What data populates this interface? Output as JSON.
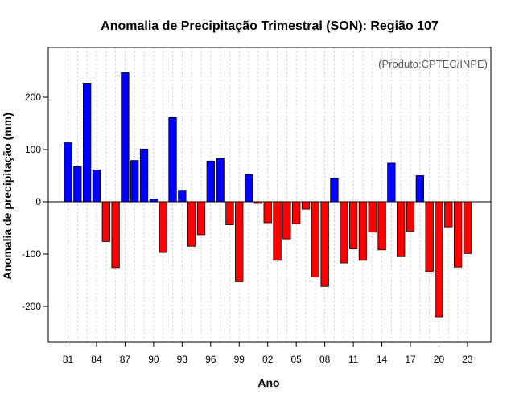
{
  "chart_data": {
    "type": "bar",
    "title": "Anomalia de Precipitação Trimestral (SON): Região 107",
    "xlabel": "Ano",
    "ylabel": "Anomalia de precipitação (mm)",
    "source_note": "(Produto:CPTEC/INPE)",
    "ylim": [
      -270,
      295
    ],
    "yticks": [
      -200,
      -100,
      0,
      100,
      200
    ],
    "grid": true,
    "categories": [
      "81",
      "82",
      "83",
      "84",
      "85",
      "86",
      "87",
      "88",
      "89",
      "90",
      "91",
      "92",
      "93",
      "94",
      "95",
      "96",
      "97",
      "98",
      "99",
      "00",
      "01",
      "02",
      "03",
      "04",
      "05",
      "06",
      "07",
      "08",
      "09",
      "10",
      "11",
      "12",
      "13",
      "14",
      "15",
      "16",
      "17",
      "18",
      "19",
      "20",
      "21",
      "22",
      "23"
    ],
    "xtick_labels": [
      "81",
      "84",
      "87",
      "90",
      "93",
      "96",
      "99",
      "02",
      "05",
      "08",
      "11",
      "14",
      "17",
      "20",
      "23"
    ],
    "values": [
      113,
      67,
      227,
      61,
      -76,
      -126,
      247,
      79,
      101,
      5,
      -97,
      161,
      22,
      -85,
      -63,
      78,
      83,
      -44,
      -153,
      52,
      -3,
      -40,
      -112,
      -71,
      -42,
      -14,
      -144,
      -162,
      45,
      -117,
      -90,
      -112,
      -58,
      -92,
      74,
      -105,
      -56,
      50,
      -133,
      -220,
      -48,
      -125,
      -99
    ],
    "colors": {
      "positive": "#0000ff",
      "negative": "#ff0000",
      "edge": "#000000",
      "grid": "#c8c8c8",
      "zero_line": "#000000"
    }
  }
}
